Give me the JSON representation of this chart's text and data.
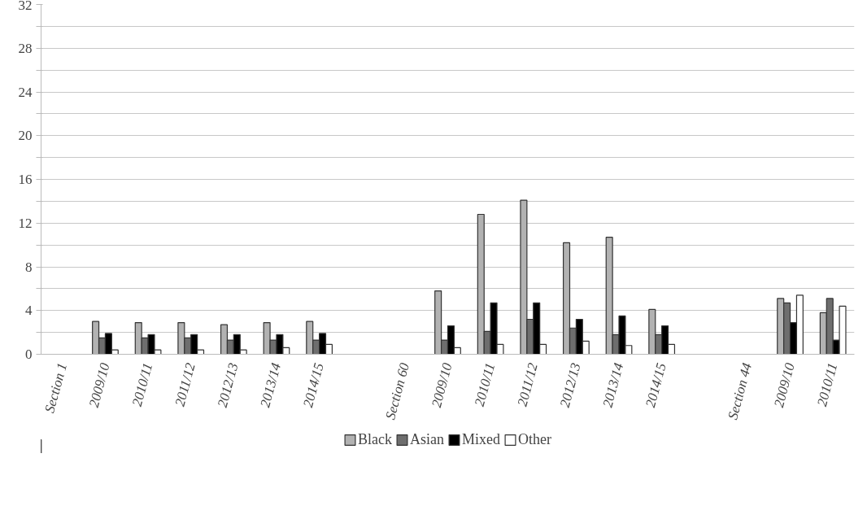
{
  "chart_data": {
    "type": "bar",
    "categories": [
      "Section 1",
      "2009/10",
      "2010/11",
      "2011/12",
      "2012/13",
      "2013/14",
      "2014/15",
      null,
      "Section 60",
      "2009/10",
      "2010/11",
      "2011/12",
      "2012/13",
      "2013/14",
      "2014/15",
      null,
      "Section 44",
      "2009/10",
      "2010/11"
    ],
    "series": [
      {
        "name": "Black",
        "color": "#b2b2b2",
        "values": [
          null,
          3.0,
          2.9,
          2.9,
          2.7,
          2.9,
          3.0,
          null,
          null,
          5.8,
          12.8,
          14.1,
          10.2,
          10.7,
          4.1,
          null,
          null,
          5.1,
          3.8
        ]
      },
      {
        "name": "Asian",
        "color": "#6e6e6e",
        "values": [
          null,
          1.5,
          1.5,
          1.5,
          1.3,
          1.3,
          1.3,
          null,
          null,
          1.3,
          2.1,
          3.2,
          2.4,
          1.8,
          1.8,
          null,
          null,
          4.7,
          5.1
        ]
      },
      {
        "name": "Mixed",
        "color": "#000000",
        "values": [
          null,
          1.9,
          1.8,
          1.8,
          1.8,
          1.8,
          1.9,
          null,
          null,
          2.6,
          4.7,
          4.7,
          3.2,
          3.5,
          2.6,
          null,
          null,
          2.9,
          1.3
        ]
      },
      {
        "name": "Other",
        "color": "#ffffff",
        "values": [
          null,
          0.4,
          0.4,
          0.4,
          0.4,
          0.6,
          0.9,
          null,
          null,
          0.6,
          0.9,
          0.9,
          1.2,
          0.8,
          0.9,
          null,
          null,
          5.4,
          4.4
        ]
      }
    ],
    "ylim": [
      0,
      32
    ],
    "yticks": [
      0,
      {
        "value": 2,
        "label": null
      },
      4,
      {
        "value": 6,
        "label": null
      },
      8,
      {
        "value": 10,
        "label": null
      },
      12,
      {
        "value": 14,
        "label": null
      },
      16,
      {
        "value": 18,
        "label": null
      },
      20,
      {
        "value": 22,
        "label": null
      },
      24,
      {
        "value": 26,
        "label": null
      },
      28,
      {
        "value": 30,
        "label": null
      },
      32
    ],
    "grid": "y",
    "legend": "bottom"
  }
}
